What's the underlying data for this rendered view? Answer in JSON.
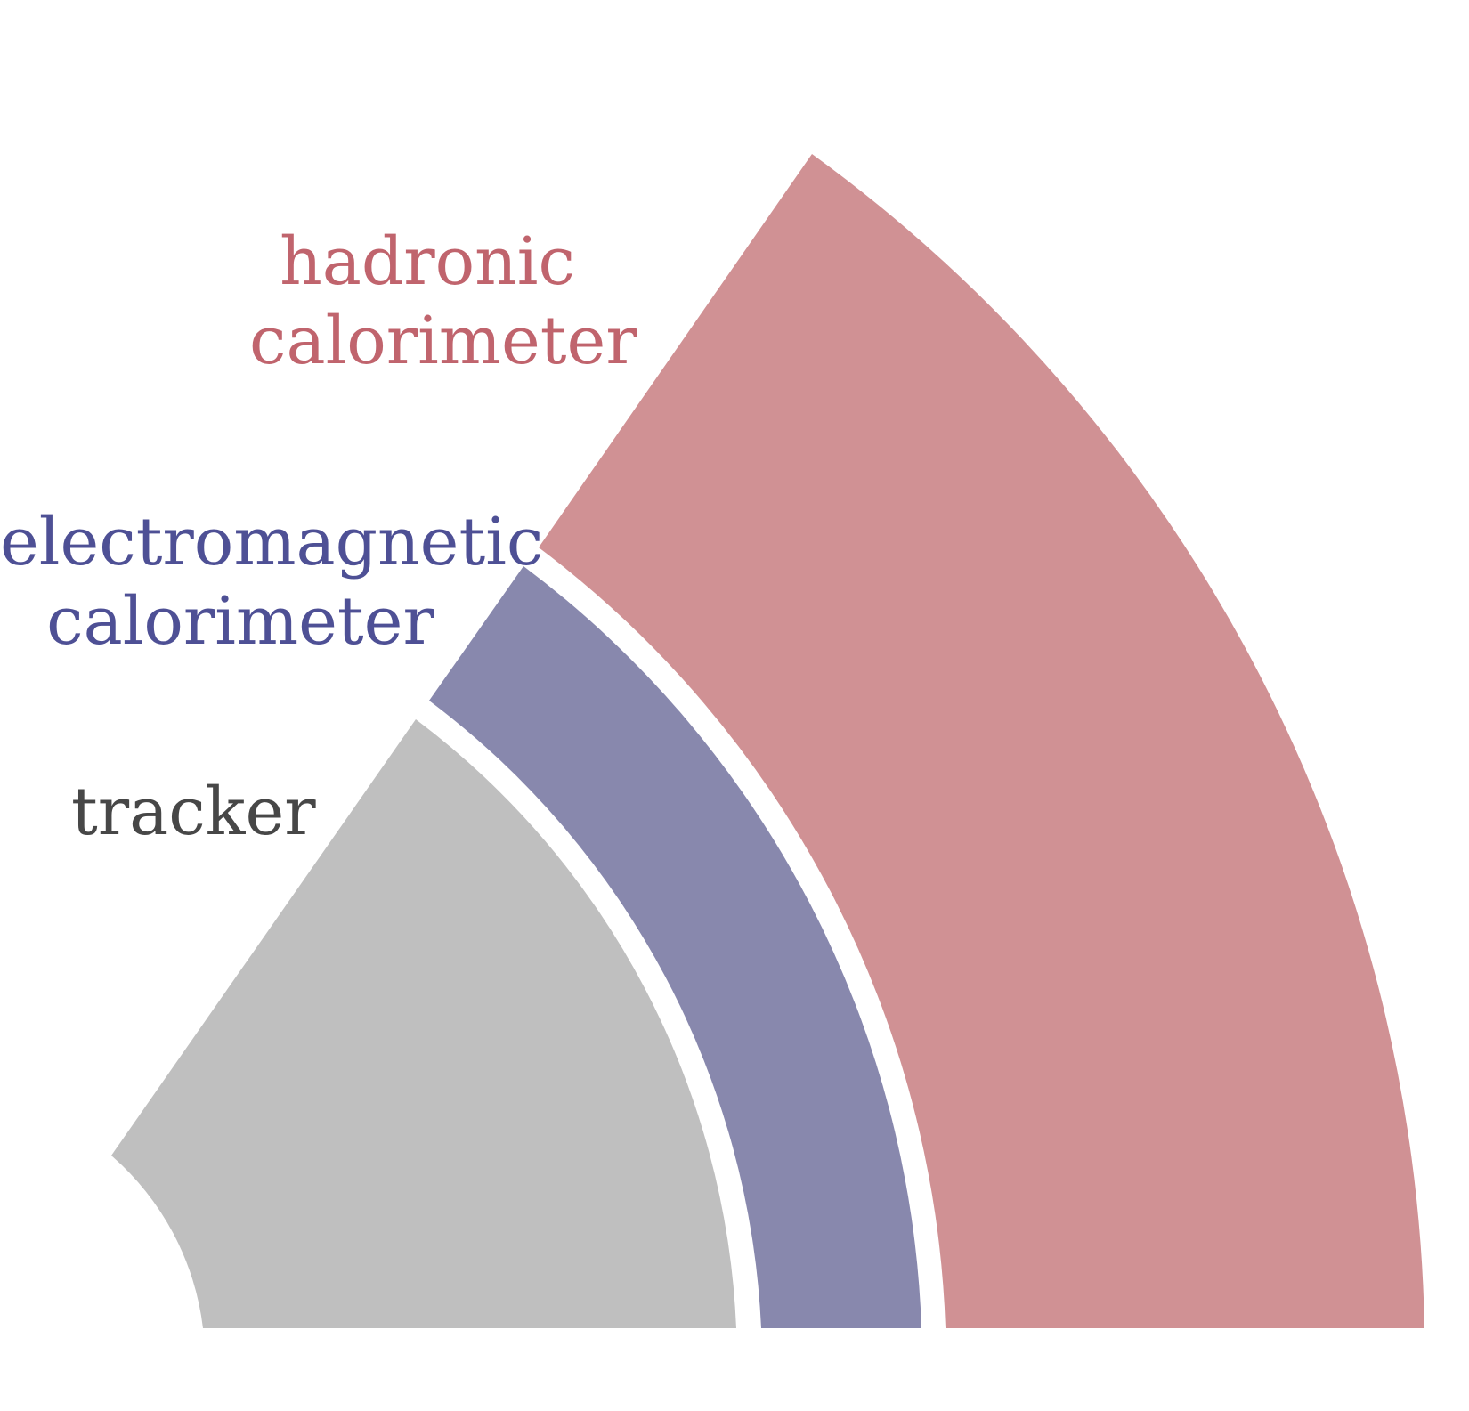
{
  "layers": {
    "hadronic": {
      "label_line1": "hadronic",
      "label_line2": "calorimeter",
      "fill_color": "#d09194",
      "text_color": "#c0646d"
    },
    "electromagnetic": {
      "label_line1": "electromagnetic",
      "label_line2": "calorimeter",
      "fill_color": "#8888ad",
      "text_color": "#4e5095"
    },
    "tracker": {
      "label": "tracker",
      "fill_color": "#bfbfbf",
      "text_color": "#474747"
    }
  }
}
